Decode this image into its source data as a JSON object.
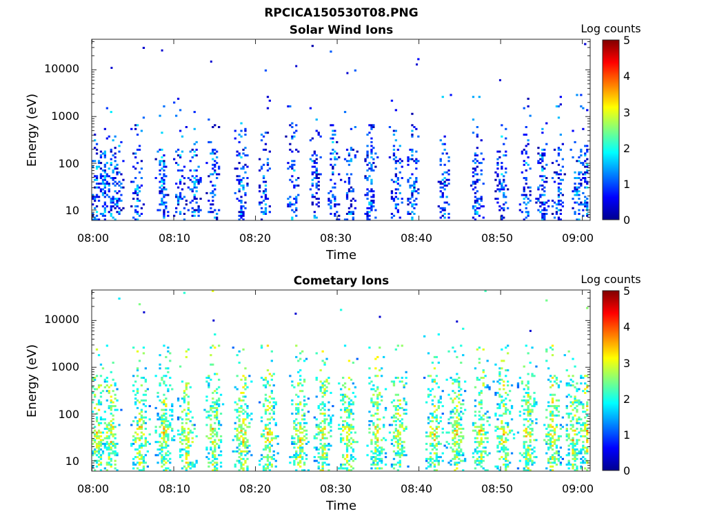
{
  "figure_title": "RPCICA150530T08.PNG",
  "chart_data": [
    {
      "type": "heatmap",
      "title": "Solar Wind Ions",
      "xlabel": "Time",
      "ylabel": "Energy (eV)",
      "x_tick_labels": [
        "08:00",
        "08:10",
        "08:20",
        "08:30",
        "08:40",
        "08:50",
        "09:00"
      ],
      "y_scale": "log",
      "y_tick_labels": [
        "10",
        "100",
        "1000",
        "10000"
      ],
      "ylim": [
        6,
        45000
      ],
      "xlim": [
        "08:00",
        "09:01"
      ],
      "colorbar_label": "Log counts",
      "colorbar_ticks": [
        "0",
        "1",
        "2",
        "3",
        "4",
        "5"
      ],
      "colorbar_range": [
        0,
        5
      ],
      "colormap": "jet",
      "activity_minutes": [
        0.5,
        1.5,
        2.3,
        3.0,
        5.5,
        8.5,
        10.7,
        12.5,
        14.8,
        18.2,
        21.0,
        24.5,
        27.2,
        29.5,
        31.5,
        34.0,
        37.2,
        39.2,
        43.0,
        47.0,
        50.0,
        53.0,
        55.0,
        57.0,
        59.3,
        60.5
      ],
      "intensity_level": 0.7,
      "sporadic_high_energy_ev": [
        11000,
        26000,
        15000,
        12000,
        8500,
        13000,
        6000
      ]
    },
    {
      "type": "heatmap",
      "title": "Cometary Ions",
      "xlabel": "Time",
      "ylabel": "Energy (eV)",
      "x_tick_labels": [
        "08:00",
        "08:10",
        "08:20",
        "08:30",
        "08:40",
        "08:50",
        "09:00"
      ],
      "y_scale": "log",
      "y_tick_labels": [
        "10",
        "100",
        "1000",
        "10000"
      ],
      "ylim": [
        6,
        45000
      ],
      "xlim": [
        "08:00",
        "09:01"
      ],
      "colorbar_label": "Log counts",
      "colorbar_ticks": [
        "0",
        "1",
        "2",
        "3",
        "4",
        "5"
      ],
      "colorbar_range": [
        0,
        5
      ],
      "colormap": "jet",
      "activity_minutes": [
        0.6,
        2.2,
        5.8,
        8.8,
        11.5,
        14.8,
        18.3,
        21.5,
        25.3,
        28.2,
        31.2,
        34.8,
        37.5,
        41.8,
        44.5,
        47.5,
        50.3,
        53.2,
        56.3,
        58.8,
        60.5
      ],
      "intensity_level": 2.0,
      "sporadic_high_energy_ev": [
        15000,
        10000,
        14000,
        12000,
        9500,
        6000
      ]
    }
  ]
}
